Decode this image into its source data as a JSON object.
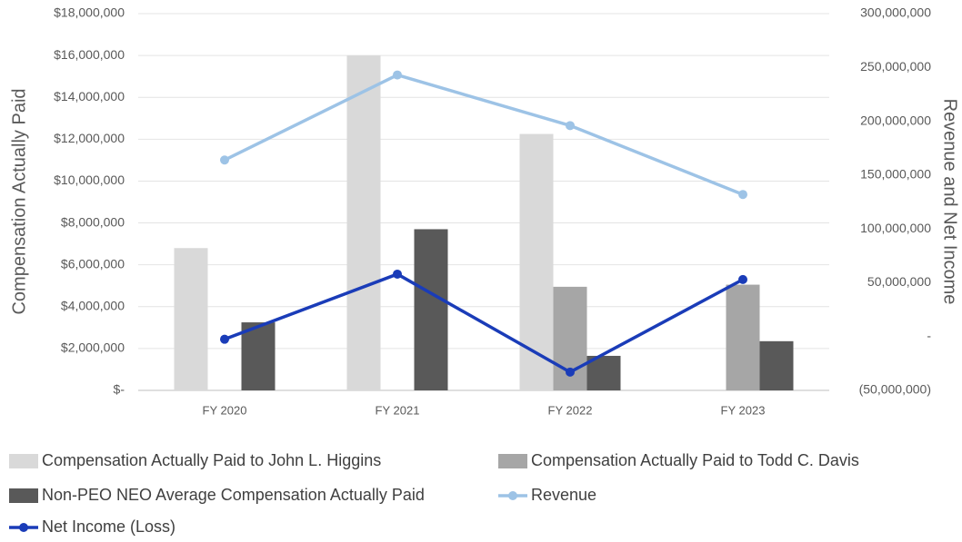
{
  "chart_data": {
    "type": "combo",
    "categories": [
      "FY 2020",
      "FY 2021",
      "FY 2022",
      "FY 2023"
    ],
    "y_label": "Compensation Actually Paid",
    "y2_label": "Revenue and Net Income",
    "ylim": [
      0,
      18000000
    ],
    "yticks": [
      {
        "value": 0,
        "label": "$-"
      },
      {
        "value": 2000000,
        "label": "$2,000,000"
      },
      {
        "value": 4000000,
        "label": "$4,000,000"
      },
      {
        "value": 6000000,
        "label": "$6,000,000"
      },
      {
        "value": 8000000,
        "label": "$8,000,000"
      },
      {
        "value": 10000000,
        "label": "$10,000,000"
      },
      {
        "value": 12000000,
        "label": "$12,000,000"
      },
      {
        "value": 14000000,
        "label": "$14,000,000"
      },
      {
        "value": 16000000,
        "label": "$16,000,000"
      },
      {
        "value": 18000000,
        "label": "$18,000,000"
      }
    ],
    "y2lim": [
      -50000000,
      300000000
    ],
    "y2ticks": [
      {
        "value": -50000000,
        "label": "(50,000,000)"
      },
      {
        "value": 0,
        "label": "-"
      },
      {
        "value": 50000000,
        "label": "50,000,000"
      },
      {
        "value": 100000000,
        "label": "100,000,000"
      },
      {
        "value": 150000000,
        "label": "150,000,000"
      },
      {
        "value": 200000000,
        "label": "200,000,000"
      },
      {
        "value": 250000000,
        "label": "250,000,000"
      },
      {
        "value": 300000000,
        "label": "300,000,000"
      }
    ],
    "grid": true,
    "legend": "bottom",
    "series": [
      {
        "name": "Compensation Actually Paid to John L. Higgins",
        "type": "bar",
        "color": "#d9d9d9",
        "values": [
          6800000,
          16000000,
          12250000,
          null
        ]
      },
      {
        "name": "Compensation Actually Paid to Todd C. Davis",
        "type": "bar",
        "color": "#a6a6a6",
        "values": [
          null,
          null,
          4950000,
          5050000
        ]
      },
      {
        "name": "Non-PEO NEO Average Compensation Actually Paid",
        "type": "bar",
        "color": "#595959",
        "values": [
          3250000,
          7700000,
          1650000,
          2350000
        ]
      },
      {
        "name": "Revenue",
        "type": "line",
        "axis": "y2",
        "color": "#9dc3e6",
        "values": [
          164000000,
          243000000,
          196000000,
          132000000
        ]
      },
      {
        "name": "Net Income (Loss)",
        "type": "line",
        "axis": "y2",
        "color": "#1a3cb8",
        "values": [
          -2500000,
          58000000,
          -33000000,
          53000000
        ]
      }
    ]
  }
}
